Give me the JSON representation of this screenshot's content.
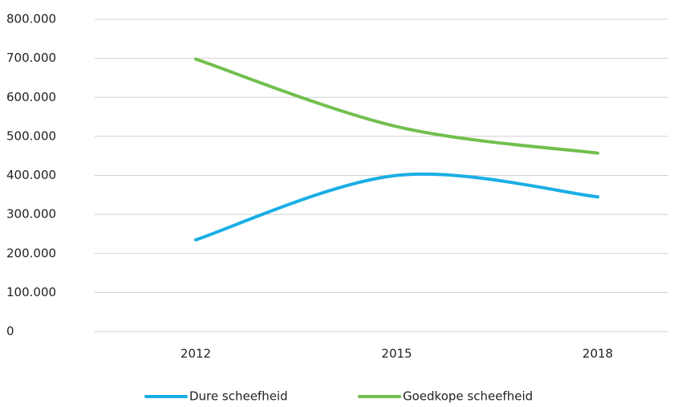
{
  "chart_data": {
    "type": "line",
    "categories": [
      "2012",
      "2015",
      "2018"
    ],
    "series": [
      {
        "name": "Dure scheefheid",
        "color": "#1aaee5",
        "values": [
          235000,
          400000,
          345000
        ]
      },
      {
        "name": "Goedkope scheefheid",
        "color": "#72bf4f",
        "values": [
          698000,
          525000,
          457000
        ]
      }
    ],
    "ylim": [
      0,
      800000
    ],
    "yticks": [
      0,
      {
        "value": 100000,
        "label": "100.000"
      },
      {
        "value": 200000,
        "label": "200.000"
      },
      {
        "value": 300000,
        "label": "300.000"
      },
      {
        "value": 400000,
        "label": "400.000"
      },
      {
        "value": 500000,
        "label": "500.000"
      },
      {
        "value": 600000,
        "label": "600.000"
      },
      {
        "value": 700000,
        "label": "700.000"
      },
      {
        "value": 800000,
        "label": "800.000"
      }
    ],
    "grid": true,
    "smooth": true,
    "legend": "bottom"
  }
}
